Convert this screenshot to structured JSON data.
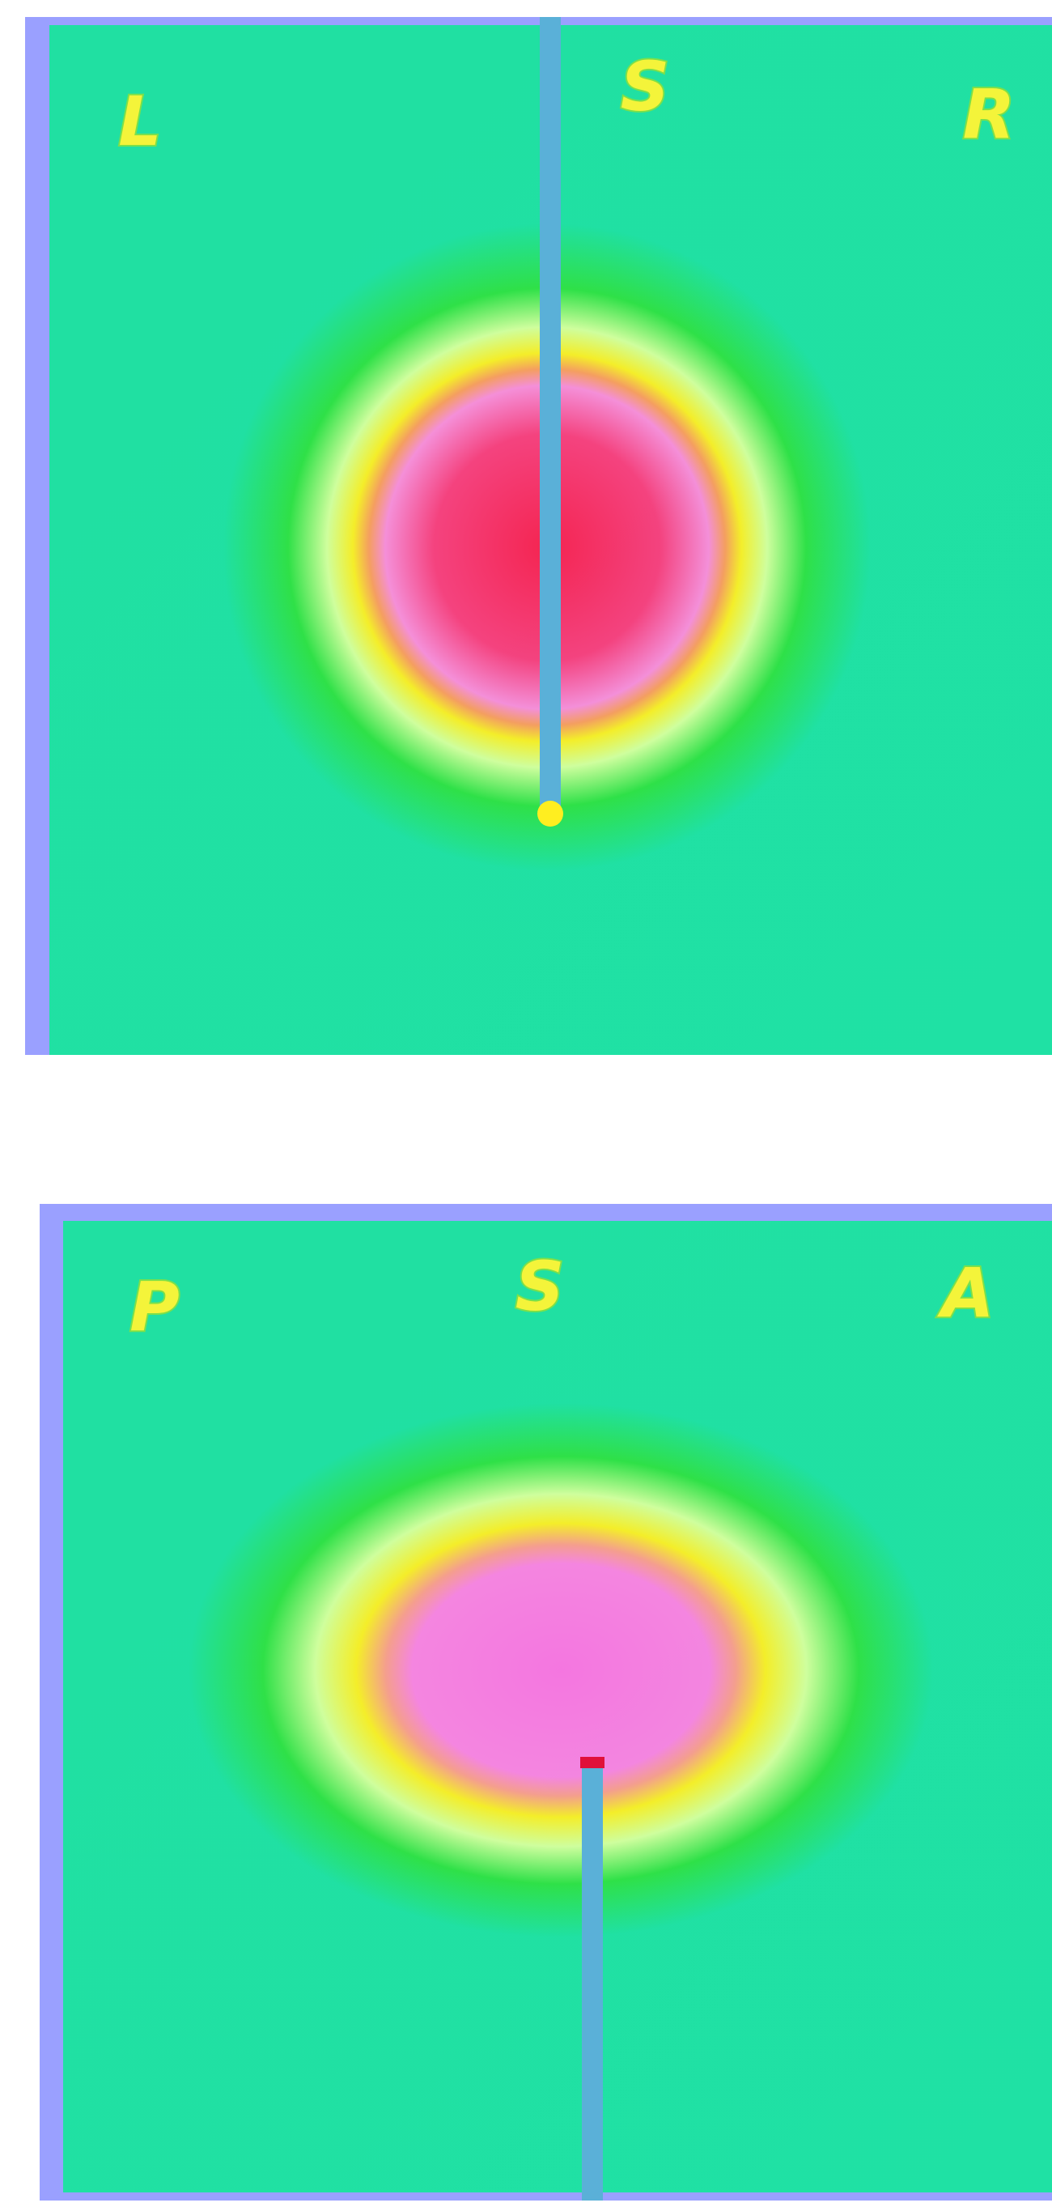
{
  "panels": [
    {
      "labels": [
        "L",
        "S",
        "R"
      ]
    },
    {
      "labels": [
        "P",
        "S",
        "A"
      ]
    }
  ]
}
